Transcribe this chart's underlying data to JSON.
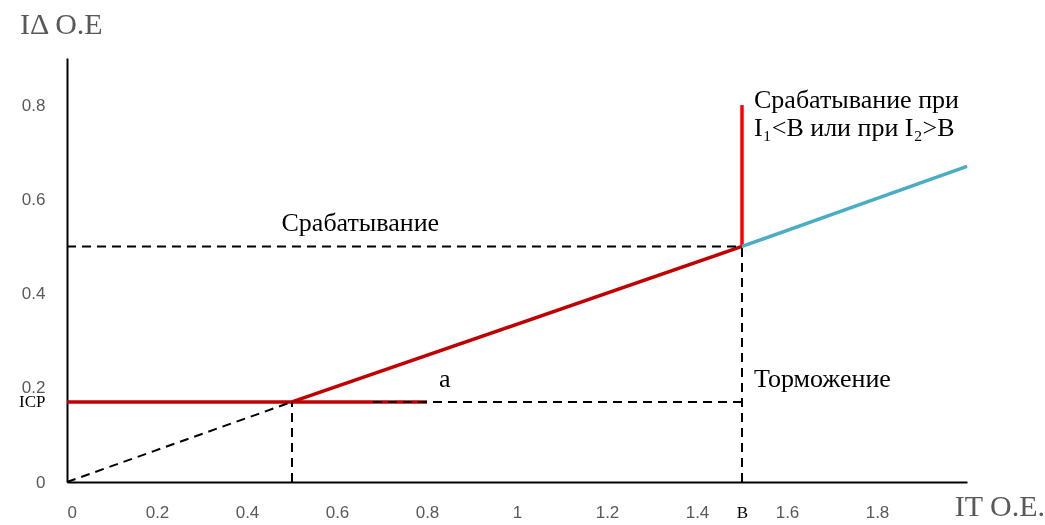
{
  "chart_data": {
    "type": "line",
    "xlabel": "IT O.E.",
    "ylabel": "IΔ O.E",
    "xlim": [
      0,
      2.0
    ],
    "ylim": [
      0,
      0.9
    ],
    "xticks": [
      0,
      0.2,
      0.4,
      0.6,
      0.8,
      1,
      1.2,
      1.4,
      {
        "value": 1.5,
        "label": "B"
      },
      1.6,
      1.8
    ],
    "yticks": [
      0,
      {
        "value": 0.17,
        "label": "ICP"
      },
      0.2,
      0.4,
      0.6,
      0.8
    ],
    "grid": false,
    "marker": "none",
    "series": [
      {
        "color": "#c00000",
        "line_style": "solid",
        "x": [
          0,
          0.8
        ],
        "values": [
          0.17,
          0.17
        ]
      },
      {
        "color": "#c00000",
        "line_style": "solid",
        "x": [
          0.5,
          1.5
        ],
        "values": [
          0.17,
          0.5
        ]
      },
      {
        "color": "#ff0000",
        "line_style": "solid",
        "x": [
          1.5,
          1.5
        ],
        "values": [
          0.5,
          0.8
        ]
      },
      {
        "color": "#4bacc6",
        "line_style": "solid",
        "x": [
          1.5,
          2.0
        ],
        "values": [
          0.5,
          0.67
        ]
      },
      {
        "color": "#000000",
        "line_style": "dashed",
        "x": [
          0,
          0.5
        ],
        "values": [
          0,
          0.17
        ]
      },
      {
        "color": "#000000",
        "line_style": "dashed",
        "x": [
          0,
          1.5
        ],
        "values": [
          0.5,
          0.5
        ]
      },
      {
        "color": "#000000",
        "line_style": "dashed",
        "x": [
          0.68,
          1.5
        ],
        "values": [
          0.17,
          0.17
        ]
      },
      {
        "color": "#000000",
        "line_style": "dashed",
        "x": [
          0.5,
          0.5
        ],
        "values": [
          0,
          0.17
        ]
      },
      {
        "color": "#000000",
        "line_style": "dashed",
        "x": [
          1.5,
          1.5
        ],
        "values": [
          0,
          0.5
        ]
      }
    ],
    "annotations": [
      {
        "text": "Срабатывание",
        "x": 0.45,
        "y": 0.5
      },
      {
        "text": "Срабатывание при\nI₁<B или при I₂>B",
        "x": 1.5,
        "y": 0.8
      },
      {
        "text": "Торможение",
        "x": 1.5,
        "y": 0.17
      },
      {
        "text": "a",
        "x": 0.8,
        "y": 0.17
      }
    ]
  }
}
